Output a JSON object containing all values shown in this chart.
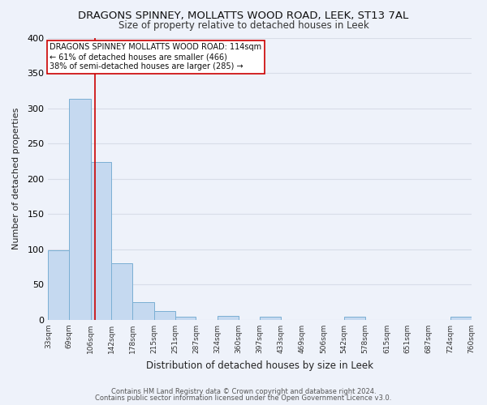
{
  "title": "DRAGONS SPINNEY, MOLLATTS WOOD ROAD, LEEK, ST13 7AL",
  "subtitle": "Size of property relative to detached houses in Leek",
  "xlabel": "Distribution of detached houses by size in Leek",
  "ylabel": "Number of detached properties",
  "bar_edges": [
    33,
    69,
    106,
    142,
    178,
    215,
    251,
    287,
    324,
    360,
    397,
    433,
    469,
    506,
    542,
    578,
    615,
    651,
    687,
    724,
    760
  ],
  "bar_heights": [
    99,
    313,
    224,
    80,
    25,
    13,
    5,
    0,
    6,
    0,
    5,
    0,
    0,
    0,
    5,
    0,
    0,
    0,
    0,
    5
  ],
  "bar_color": "#c5d9f0",
  "bar_edge_color": "#7bafd4",
  "vline_x": 114,
  "vline_color": "#cc0000",
  "ylim": [
    0,
    400
  ],
  "yticks": [
    0,
    50,
    100,
    150,
    200,
    250,
    300,
    350,
    400
  ],
  "annotation_title": "DRAGONS SPINNEY MOLLATTS WOOD ROAD: 114sqm",
  "annotation_line1": "← 61% of detached houses are smaller (466)",
  "annotation_line2": "38% of semi-detached houses are larger (285) →",
  "annotation_box_color": "#ffffff",
  "annotation_box_edge": "#cc0000",
  "footer_line1": "Contains HM Land Registry data © Crown copyright and database right 2024.",
  "footer_line2": "Contains public sector information licensed under the Open Government Licence v3.0.",
  "background_color": "#eef2fa",
  "grid_color": "#d8dde8"
}
